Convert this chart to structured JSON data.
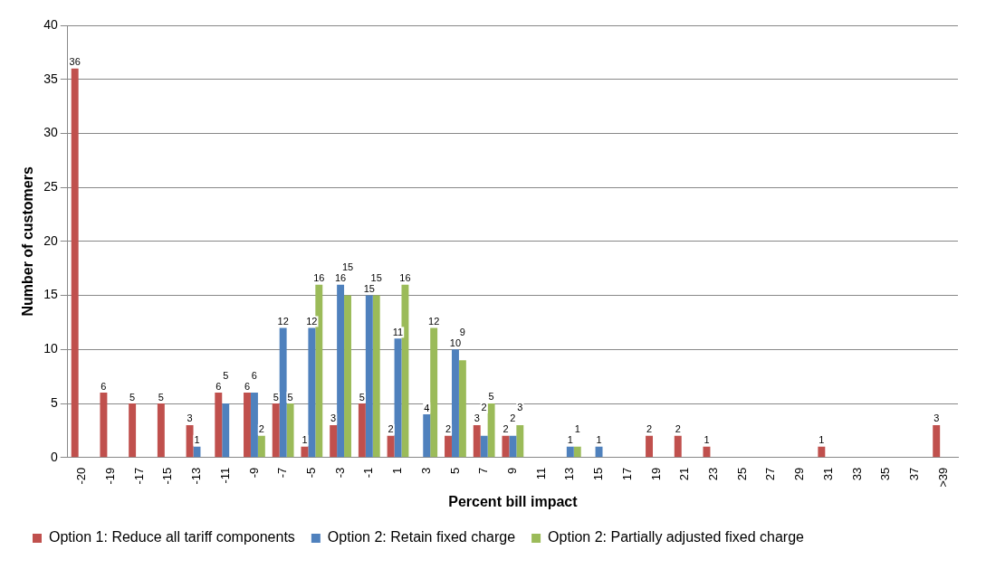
{
  "chart_data": {
    "type": "bar",
    "xlabel": "Percent bill impact",
    "ylabel": "Number of customers",
    "categories": [
      "-20",
      "-19",
      "-17",
      "-15",
      "-13",
      "-11",
      "-9",
      "-7",
      "-5",
      "-3",
      "-1",
      "1",
      "3",
      "5",
      "7",
      "9",
      "11",
      "13",
      "15",
      "17",
      "19",
      "21",
      "23",
      "25",
      "27",
      "29",
      "31",
      "33",
      "35",
      "37",
      ">39"
    ],
    "series": [
      {
        "name": "Option 1: Reduce all tariff components",
        "color": "#c0504d",
        "values": [
          36,
          6,
          5,
          5,
          3,
          6,
          6,
          5,
          1,
          3,
          5,
          2,
          0,
          2,
          3,
          2,
          0,
          0,
          0,
          0,
          2,
          2,
          1,
          0,
          0,
          0,
          1,
          0,
          0,
          0,
          3
        ],
        "value_labels": [
          "36",
          "6",
          "5",
          "5",
          "3",
          "6",
          "6",
          "5",
          "1",
          "3",
          "5",
          "2",
          null,
          "2",
          "3",
          "2",
          null,
          null,
          null,
          null,
          "2",
          "2",
          "1",
          null,
          null,
          null,
          "1",
          null,
          null,
          null,
          "3"
        ]
      },
      {
        "name": "Option 2: Retain fixed charge",
        "color": "#4f81bd",
        "values": [
          0,
          0,
          0,
          0,
          1,
          5,
          6,
          12,
          12,
          16,
          15,
          11,
          4,
          10,
          2,
          2,
          0,
          1,
          1,
          0,
          0,
          0,
          0,
          0,
          0,
          0,
          0,
          0,
          0,
          0,
          0
        ],
        "value_labels": [
          null,
          null,
          null,
          null,
          "1",
          "5",
          "6",
          "12",
          "12",
          "16",
          "15",
          "11",
          "4",
          "10",
          "2",
          "2",
          null,
          "1",
          "1",
          null,
          null,
          null,
          null,
          null,
          null,
          null,
          null,
          null,
          null,
          null,
          null
        ]
      },
      {
        "name": "Option 2: Partially adjusted fixed charge",
        "color": "#9bbb59",
        "values": [
          0,
          0,
          0,
          0,
          0,
          0,
          2,
          5,
          16,
          15,
          15,
          16,
          12,
          9,
          5,
          3,
          0,
          1,
          0,
          0,
          0,
          0,
          0,
          0,
          0,
          0,
          0,
          0,
          0,
          0,
          0
        ],
        "value_labels": [
          null,
          null,
          null,
          null,
          null,
          null,
          "2",
          "5",
          "16",
          "15",
          "15",
          "16",
          "12",
          "9",
          "5",
          "3",
          null,
          "1",
          null,
          null,
          null,
          null,
          null,
          null,
          null,
          null,
          null,
          null,
          null,
          null,
          null
        ]
      }
    ],
    "ylim": [
      0,
      40
    ],
    "yticks": [
      0,
      5,
      10,
      15,
      20,
      25,
      30,
      35,
      40
    ],
    "grid": "y",
    "legend": "bottom"
  }
}
